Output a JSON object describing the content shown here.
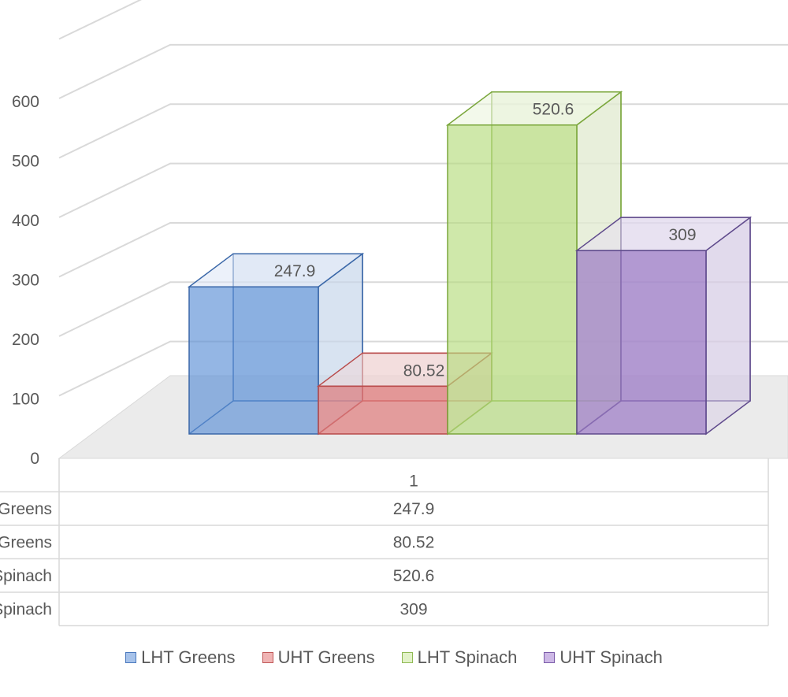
{
  "chart_data": {
    "type": "bar",
    "categories": [
      "1"
    ],
    "series": [
      {
        "name": "LHT Greens",
        "values": [
          247.9
        ],
        "value_label": "247.9",
        "color": "#5b8fd6"
      },
      {
        "name": "UHT Greens",
        "values": [
          80.52
        ],
        "value_label": "80.52",
        "color": "#e07a7a"
      },
      {
        "name": "LHT Spinach",
        "values": [
          520.6
        ],
        "value_label": "520.6",
        "color": "#b5dc7c"
      },
      {
        "name": "UHT Spinach",
        "values": [
          309
        ],
        "value_label": "309",
        "color": "#9a77c4"
      }
    ],
    "y_ticks": [
      "0",
      "100",
      "200",
      "300",
      "400",
      "500",
      "600"
    ],
    "ylim": [
      0,
      700
    ],
    "grid": true,
    "three_d": true,
    "data_table": {
      "header": "1",
      "rows": [
        {
          "label": "LHT Greens",
          "value": "247.9"
        },
        {
          "label": "UHT Greens",
          "value": "80.52"
        },
        {
          "label": "LHT Spinach",
          "value": "520.6"
        },
        {
          "label": "UHT Spinach",
          "value": "309"
        }
      ]
    },
    "legend_position": "bottom"
  }
}
